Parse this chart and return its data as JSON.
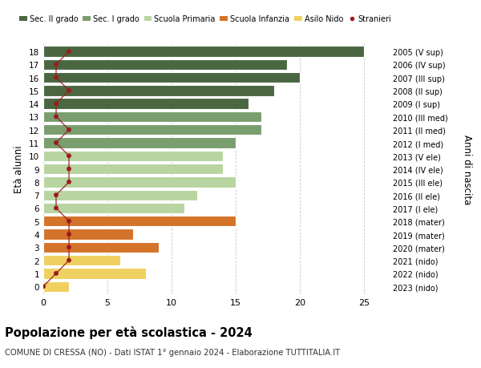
{
  "ages": [
    18,
    17,
    16,
    15,
    14,
    13,
    12,
    11,
    10,
    9,
    8,
    7,
    6,
    5,
    4,
    3,
    2,
    1,
    0
  ],
  "values": [
    25,
    19,
    20,
    18,
    16,
    17,
    17,
    15,
    14,
    14,
    15,
    12,
    11,
    15,
    7,
    9,
    6,
    8,
    2
  ],
  "stranieri_vals": [
    2,
    1,
    1,
    2,
    1,
    1,
    2,
    1,
    2,
    2,
    2,
    1,
    1,
    2,
    2,
    2,
    2,
    1,
    0
  ],
  "right_labels": [
    "2005 (V sup)",
    "2006 (IV sup)",
    "2007 (III sup)",
    "2008 (II sup)",
    "2009 (I sup)",
    "2010 (III med)",
    "2011 (II med)",
    "2012 (I med)",
    "2013 (V ele)",
    "2014 (IV ele)",
    "2015 (III ele)",
    "2016 (II ele)",
    "2017 (I ele)",
    "2018 (mater)",
    "2019 (mater)",
    "2020 (mater)",
    "2021 (nido)",
    "2022 (nido)",
    "2023 (nido)"
  ],
  "bar_colors": [
    "#4a6741",
    "#4a6741",
    "#4a6741",
    "#4a6741",
    "#4a6741",
    "#7a9e6e",
    "#7a9e6e",
    "#7a9e6e",
    "#b8d4a0",
    "#b8d4a0",
    "#b8d4a0",
    "#b8d4a0",
    "#b8d4a0",
    "#d4732a",
    "#d4732a",
    "#d4732a",
    "#f0d060",
    "#f0d060",
    "#f0d060"
  ],
  "legend_labels": [
    "Sec. II grado",
    "Sec. I grado",
    "Scuola Primaria",
    "Scuola Infanzia",
    "Asilo Nido",
    "Stranieri"
  ],
  "legend_colors": [
    "#4a6741",
    "#7a9e6e",
    "#b8d4a0",
    "#d4732a",
    "#f0d060",
    "#9b1c1c"
  ],
  "stranieri_color": "#9b1c1c",
  "title": "Popolazione per età scolastica - 2024",
  "subtitle": "COMUNE DI CRESSA (NO) - Dati ISTAT 1° gennaio 2024 - Elaborazione TUTTITALIA.IT",
  "ylabel": "Età alunni",
  "right_ylabel": "Anni di nascita",
  "xlim": [
    0,
    27
  ],
  "xticks": [
    0,
    5,
    10,
    15,
    20,
    25
  ],
  "background_color": "#ffffff",
  "grid_color": "#c8c8c8",
  "bar_height": 0.82
}
